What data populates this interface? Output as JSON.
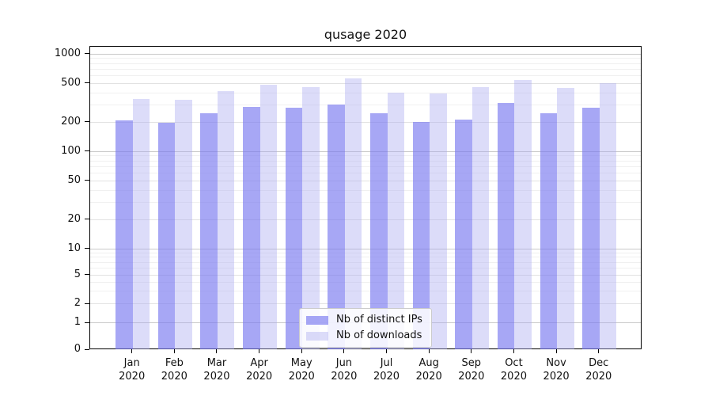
{
  "chart_data": {
    "type": "bar",
    "title": "qusage 2020",
    "categories": [
      "Jan",
      "Feb",
      "Mar",
      "Apr",
      "May",
      "Jun",
      "Jul",
      "Aug",
      "Sep",
      "Oct",
      "Nov",
      "Dec"
    ],
    "category_year": "2020",
    "series": [
      {
        "name": "Nb of distinct IPs",
        "color": "#a7a7f5",
        "fill": "rgba(120,120,240,0.65)",
        "values": [
          207,
          195,
          243,
          285,
          278,
          298,
          245,
          200,
          210,
          313,
          244,
          281
        ]
      },
      {
        "name": "Nb of downloads",
        "color": "#dcdcf9",
        "fill": "rgba(172,172,241,0.42)",
        "values": [
          345,
          335,
          410,
          478,
          452,
          552,
          396,
          392,
          455,
          533,
          447,
          500
        ]
      }
    ],
    "xlabel": "",
    "ylabel": "",
    "yscale": "pseudo-log",
    "ytick_labels": [
      "1000",
      "500",
      "200",
      "100",
      "50",
      "20",
      "10",
      "5",
      "2",
      "1",
      "0"
    ],
    "ylim": [
      0,
      1150
    ],
    "grid": true,
    "legend_position": "lower center"
  }
}
